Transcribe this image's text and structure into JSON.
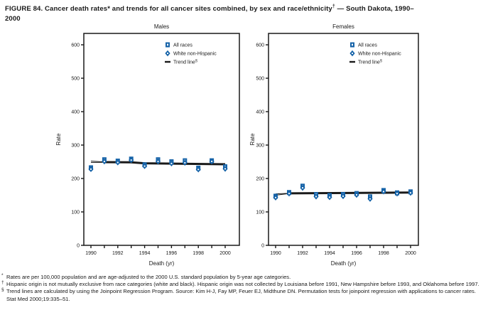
{
  "page": {
    "background": "#ffffff",
    "text_color": "#1a1a1a",
    "accent_blue": "#1663a8"
  },
  "figure": {
    "title_line1_parts": [
      {
        "text": "FIGURE 84. Cancer death rates* and trends for all cancer sites combined, by sex and race/ethnicity",
        "sup": false
      },
      {
        "text": "†",
        "sup": true
      },
      {
        "text": " — South Dakota, 1990–",
        "sup": false
      }
    ],
    "title_line2": "2000"
  },
  "chart_data": [
    {
      "type": "scatter",
      "title": "Males",
      "xlabel": "Death (yr)",
      "ylabel": "Rate",
      "x": [
        1990,
        1991,
        1992,
        1993,
        1994,
        1995,
        1996,
        1997,
        1998,
        1999,
        2000
      ],
      "xtick_labels": [
        "1990",
        "1992",
        "1994",
        "1996",
        "1998",
        "2000"
      ],
      "yticks": [
        0,
        100,
        200,
        300,
        400,
        500,
        600
      ],
      "ylim": [
        0,
        634
      ],
      "grid": false,
      "legend_position": "top-center-inside",
      "series": [
        {
          "name": "All races",
          "marker": "square",
          "color": "#1663a8",
          "values": [
            232,
            256,
            252,
            258,
            241,
            256,
            250,
            253,
            231,
            253,
            235
          ]
        },
        {
          "name": "White non-Hispanic",
          "marker": "diamond",
          "color": "#1663a8",
          "values": [
            228,
            251,
            248,
            255,
            237,
            251,
            245,
            247,
            227,
            251,
            229
          ]
        },
        {
          "name": "Trend line",
          "marker": "line",
          "legend_sup": "§",
          "color": "#1a1a1a",
          "segments": [
            {
              "points": [
                [
                  1990,
                  252
                ],
                [
                  1991,
                  249.5
                ]
              ],
              "width": 1
            },
            {
              "points": [
                [
                  1990,
                  248
                ],
                [
                  1991,
                  248.5
                ]
              ],
              "width": 1
            },
            {
              "points": [
                [
                  1991,
                  249
                ],
                [
                  1993,
                  248.5
                ],
                [
                  1994,
                  245.5
                ],
                [
                  2000,
                  242.5
                ]
              ],
              "width": 3
            }
          ]
        }
      ]
    },
    {
      "type": "scatter",
      "title": "Females",
      "xlabel": "Death (yr)",
      "ylabel": "Rate",
      "x": [
        1990,
        1991,
        1992,
        1993,
        1994,
        1995,
        1996,
        1997,
        1998,
        1999,
        2000
      ],
      "xtick_labels": [
        "1990",
        "1992",
        "1994",
        "1996",
        "1998",
        "2000"
      ],
      "yticks": [
        0,
        100,
        200,
        300,
        400,
        500,
        600
      ],
      "ylim": [
        0,
        634
      ],
      "grid": false,
      "legend_position": "top-center-inside",
      "series": [
        {
          "name": "All races",
          "marker": "square",
          "color": "#1663a8",
          "values": [
            147,
            158,
            177,
            152,
            149,
            152,
            155,
            145,
            164,
            157,
            160
          ]
        },
        {
          "name": "White non-Hispanic",
          "marker": "diamond",
          "color": "#1663a8",
          "values": [
            143,
            155,
            172,
            146,
            144,
            147,
            151,
            139,
            161,
            155,
            157
          ]
        },
        {
          "name": "Trend line",
          "marker": "line",
          "legend_sup": "§",
          "color": "#1a1a1a",
          "segments": [
            {
              "points": [
                [
                  1990,
                  154
                ],
                [
                  1991,
                  155.5
                ]
              ],
              "width": 1
            },
            {
              "points": [
                [
                  1990,
                  150
                ],
                [
                  1991,
                  155
                ]
              ],
              "width": 1
            },
            {
              "points": [
                [
                  1991,
                  155.5
                ],
                [
                  2000,
                  158
                ]
              ],
              "width": 3
            }
          ]
        }
      ]
    }
  ],
  "footnotes": [
    {
      "marker": "*",
      "text": "Rates are per 100,000 population and are age-adjusted to the 2000 U.S. standard population by 5-year age categories."
    },
    {
      "marker": "†",
      "text": "Hispanic origin is not mutually exclusive from race categories (white and black). Hispanic origin was not collected by Louisiana before 1991, New Hampshire before 1993, and Oklahoma before 1997."
    },
    {
      "marker": "§",
      "text": "Trend lines are calculated by using the Joinpoint Regression Program. Source: Kim H-J, Fay MP, Feuer EJ, Midthune DN. Permutation tests for joinpoint regression with applications to cancer rates. Stat Med 2000;19:335–51."
    }
  ]
}
